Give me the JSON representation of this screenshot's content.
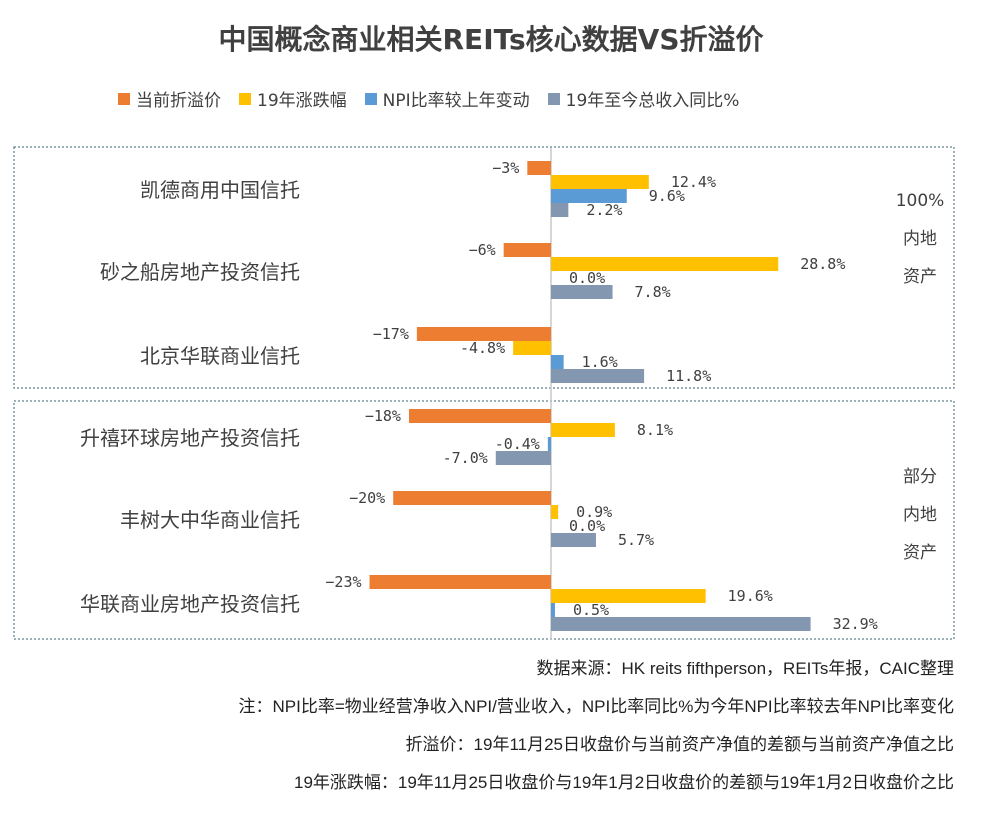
{
  "chart_data": {
    "type": "bar",
    "orientation": "horizontal",
    "title": "中国概念商业相关REITs核心数据VS折溢价",
    "categories": [
      "凯德商用中国信托",
      "砂之船房地产投资信托",
      "北京华联商业信托",
      "升禧环球房地产投资信托",
      "丰树大中华商业信托",
      "华联商业房地产投资信托"
    ],
    "series": [
      {
        "name": "当前折溢价",
        "color": "#ED7D31",
        "values": [
          -3,
          -6,
          -17,
          -18,
          -20,
          -23
        ],
        "labels": [
          "−3%",
          "−6%",
          "−17%",
          "−18%",
          "−20%",
          "−23%"
        ]
      },
      {
        "name": "19年涨跌幅",
        "color": "#FFC000",
        "values": [
          12.4,
          28.8,
          -4.8,
          8.1,
          0.9,
          19.6
        ],
        "labels": [
          "12.4%",
          "28.8%",
          "-4.8%",
          "8.1%",
          "0.9%",
          "19.6%"
        ]
      },
      {
        "name": "NPI比率较上年变动",
        "color": "#5B9BD5",
        "values": [
          9.6,
          0.0,
          1.6,
          -0.4,
          0.0,
          0.5
        ],
        "labels": [
          "9.6%",
          "0.0%",
          "1.6%",
          "-0.4%",
          "0.0%",
          "0.5%"
        ]
      },
      {
        "name": "19年至今总收入同比%",
        "color": "#8497B0",
        "values": [
          2.2,
          7.8,
          11.8,
          -7.0,
          5.7,
          32.9
        ],
        "labels": [
          "2.2%",
          "7.8%",
          "11.8%",
          "-7.0%",
          "5.7%",
          "32.9%"
        ]
      }
    ],
    "groups": [
      {
        "label_lines": [
          "100%",
          "内地",
          "资产"
        ]
      },
      {
        "label_lines": [
          "部分",
          "内地",
          "资产"
        ]
      }
    ]
  },
  "notes": [
    "数据来源：HK reits fifthperson，REITs年报，CAIC整理",
    "注：NPI比率=物业经营净收入NPI/营业收入，NPI比率同比%为今年NPI比率较去年NPI比率变化",
    "折溢价：19年11月25日收盘价与当前资产净值的差额与当前资产净值之比",
    "19年涨跌幅：19年11月25日收盘价与19年1月2日收盘价的差额与19年1月2日收盘价之比"
  ]
}
